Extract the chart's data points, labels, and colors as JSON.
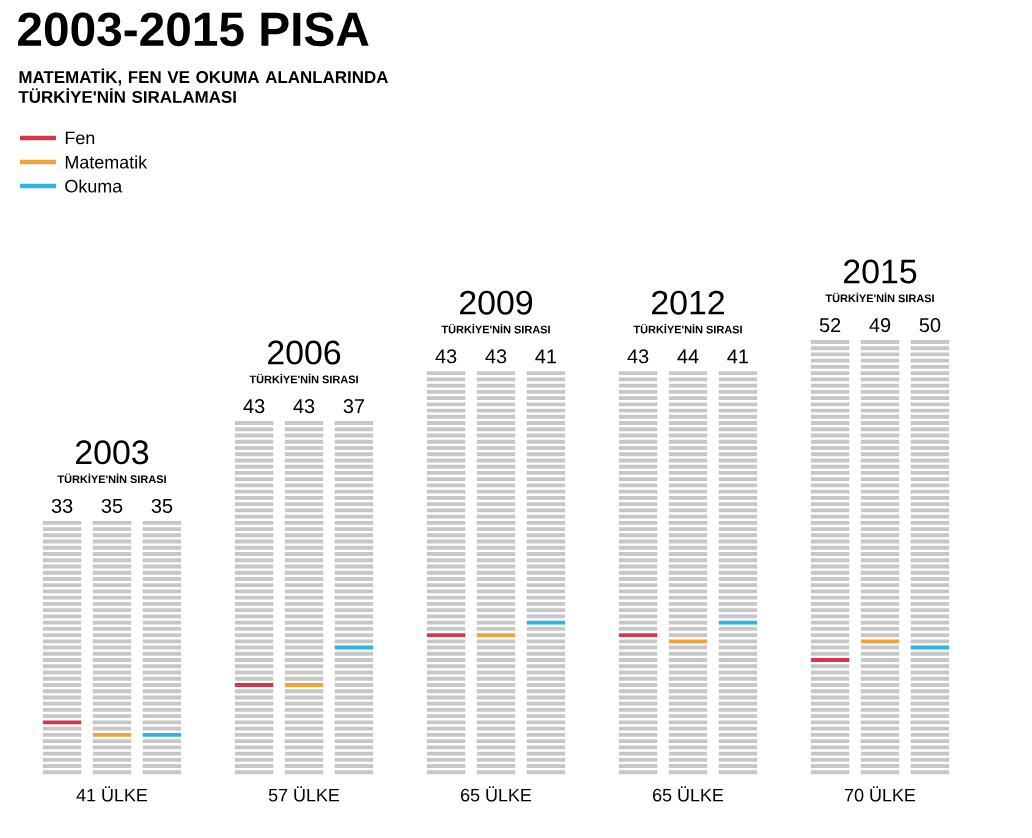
{
  "chart_data": {
    "type": "other",
    "title": "2003-2015 PISA",
    "subtitle": "MATEMATİK, FEN VE OKUMA ALANLARINDA TÜRKİYE'NİN SIRALAMASI",
    "categories": [
      "2003",
      "2006",
      "2009",
      "2012",
      "2015"
    ],
    "values": [
      41,
      57,
      65,
      65,
      70
    ],
    "value_labels": [
      "41 ÜLKE",
      "57 ÜLKE",
      "65 ÜLKE",
      "65 ÜLKE",
      "70 ÜLKE"
    ],
    "series": [
      {
        "name": "Fen",
        "color": "#d8344c",
        "values": [
          33,
          43,
          43,
          43,
          52
        ]
      },
      {
        "name": "Matematik",
        "color": "#eea437",
        "values": [
          35,
          43,
          43,
          44,
          49
        ]
      },
      {
        "name": "Okuma",
        "color": "#2eb4e0",
        "values": [
          35,
          37,
          41,
          41,
          50
        ]
      }
    ],
    "data_labels": true,
    "annotations": [
      "TÜRKİYE'NİN SIRASI",
      "TÜRKİYE'NİN SIRASI",
      "TÜRKİYE'NİN SIRASI",
      "TÜRKİYE'NİN SIRASI",
      "TÜRKİYE'NİN SIRASI"
    ],
    "legend": "top left"
  }
}
